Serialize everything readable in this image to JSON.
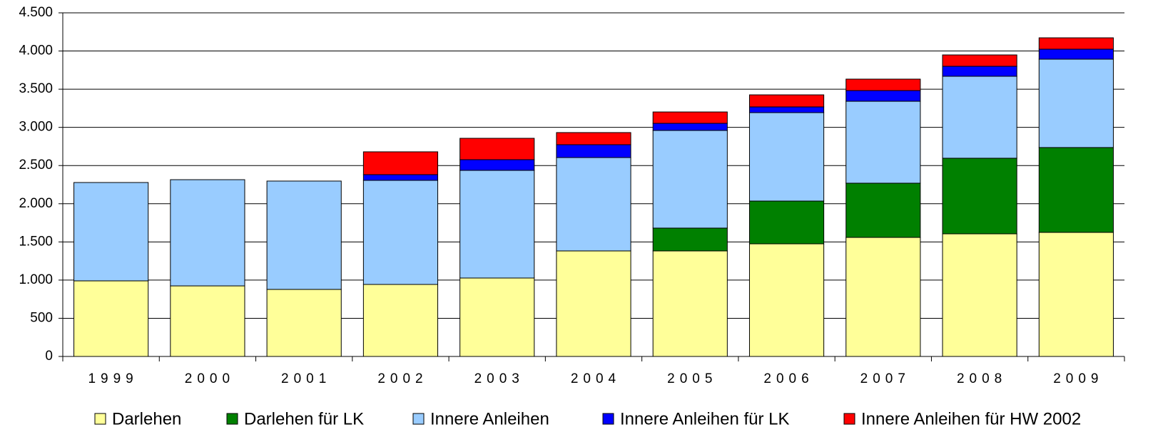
{
  "chart_data": {
    "type": "stacked_bar",
    "categories": [
      "1999",
      "2000",
      "2001",
      "2002",
      "2003",
      "2004",
      "2005",
      "2006",
      "2007",
      "2008",
      "2009"
    ],
    "series": [
      {
        "name": "Darlehen",
        "color": "#ffff99",
        "values": [
          990,
          924,
          878,
          943,
          1027,
          1382,
          1382,
          1475,
          1559,
          1606,
          1625
        ]
      },
      {
        "name": "Darlehen für LK",
        "color": "#008000",
        "values": [
          0,
          0,
          0,
          0,
          0,
          0,
          299,
          560,
          710,
          990,
          1111
        ]
      },
      {
        "name": "Innere Anleihen",
        "color": "#99ccff",
        "values": [
          1288,
          1391,
          1419,
          1363,
          1410,
          1223,
          1279,
          1158,
          1073,
          1073,
          1157
        ]
      },
      {
        "name": "Innere Anleihen für LK",
        "color": "#0000ff",
        "values": [
          0,
          0,
          0,
          75,
          140,
          168,
          93,
          75,
          140,
          131,
          131
        ]
      },
      {
        "name": "Innere Anleihen für HW 2002",
        "color": "#ff0000",
        "values": [
          0,
          0,
          0,
          299,
          280,
          159,
          149,
          158,
          150,
          149,
          149
        ]
      }
    ],
    "ylim": [
      0,
      4500
    ],
    "yticks": [
      0,
      500,
      {
        "value": 1000,
        "label": "1.000"
      },
      {
        "value": 1500,
        "label": "1.500"
      },
      {
        "value": 2000,
        "label": "2.000"
      },
      {
        "value": 2500,
        "label": "2.500"
      },
      {
        "value": 3000,
        "label": "3.000"
      },
      {
        "value": 3500,
        "label": "3.500"
      },
      {
        "value": 4000,
        "label": "4.000"
      },
      {
        "value": 4500,
        "label": "4.500"
      }
    ],
    "grid": true,
    "legend": "bottom"
  }
}
